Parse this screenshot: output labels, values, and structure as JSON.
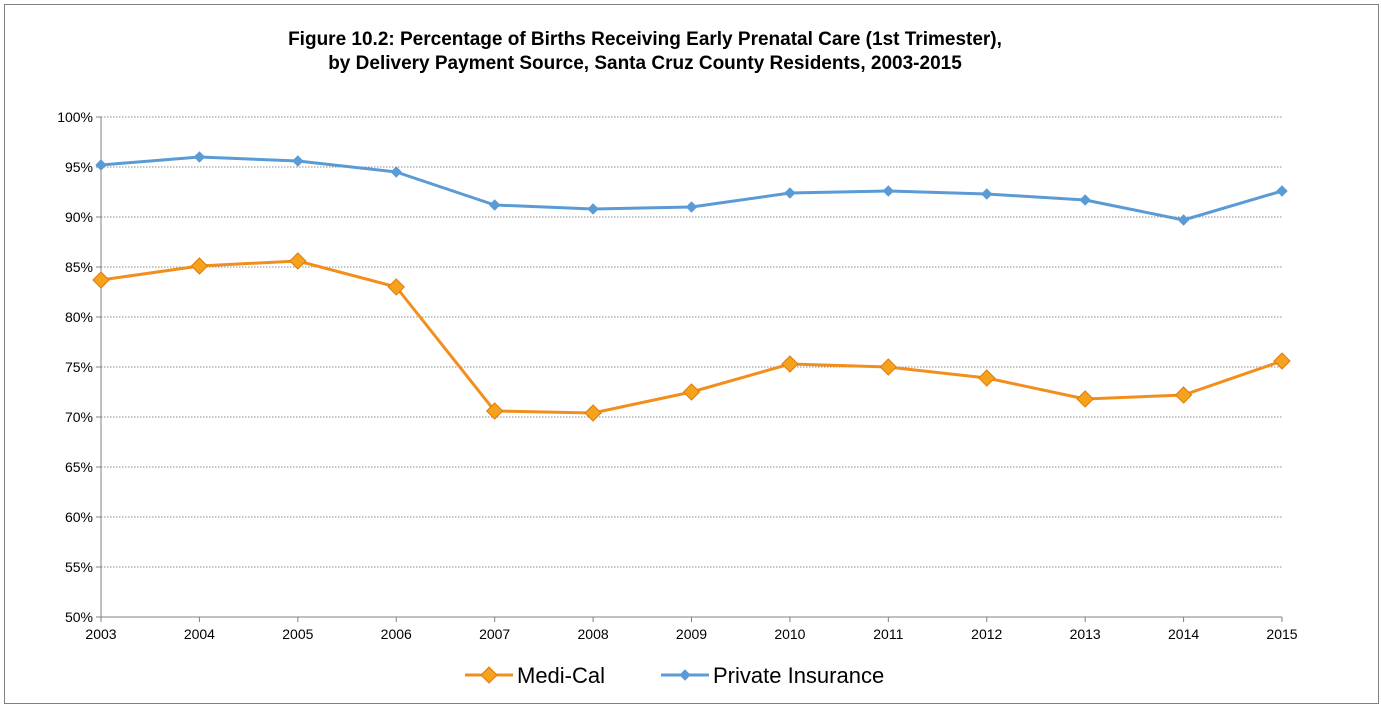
{
  "chart_data": {
    "type": "line",
    "title": "Figure 10.2:  Percentage of Births Receiving Early Prenatal Care (1st Trimester),",
    "subtitle": "by Delivery Payment Source, Santa Cruz County Residents, 2003-2015",
    "xlabel": "",
    "ylabel": "",
    "x": [
      "2003",
      "2004",
      "2005",
      "2006",
      "2007",
      "2008",
      "2009",
      "2010",
      "2011",
      "2012",
      "2013",
      "2014",
      "2015"
    ],
    "ylim": [
      50,
      100
    ],
    "yticks": [
      50,
      55,
      60,
      65,
      70,
      75,
      80,
      85,
      90,
      95,
      100
    ],
    "ytick_labels": [
      "50%",
      "55%",
      "60%",
      "65%",
      "70%",
      "75%",
      "80%",
      "85%",
      "90%",
      "95%",
      "100%"
    ],
    "grid": "horizontal",
    "legend_position": "bottom",
    "series": [
      {
        "name": "Medi-Cal",
        "color": "#F28E1C",
        "marker": "diamond",
        "values": [
          83.7,
          85.1,
          85.6,
          83.0,
          70.6,
          70.4,
          72.5,
          75.3,
          75.0,
          73.9,
          71.8,
          72.2,
          75.6
        ]
      },
      {
        "name": "Private Insurance",
        "color": "#5B9BD5",
        "marker": "small-diamond",
        "values": [
          95.2,
          96.0,
          95.6,
          94.5,
          91.2,
          90.8,
          91.0,
          92.4,
          92.6,
          92.3,
          91.7,
          89.7,
          92.6
        ]
      }
    ]
  }
}
